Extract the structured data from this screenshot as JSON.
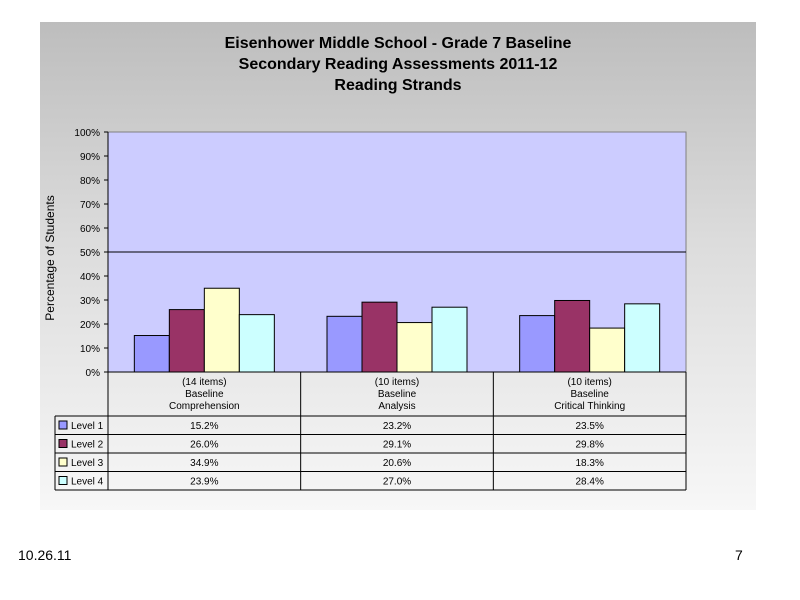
{
  "chart_data": {
    "type": "bar",
    "title_lines": [
      "Eisenhower Middle School - Grade 7 Baseline",
      "Secondary Reading Assessments 2011-12",
      "Reading Strands"
    ],
    "ylabel": "Percentage of Students",
    "ylim": [
      0,
      100
    ],
    "yticks": [
      "0%",
      "10%",
      "20%",
      "30%",
      "40%",
      "50%",
      "60%",
      "70%",
      "80%",
      "90%",
      "100%"
    ],
    "reference_line": 50,
    "categories": [
      {
        "line1": "(14 items)",
        "line2": "Baseline",
        "line3": "Comprehension"
      },
      {
        "line1": "(10 items)",
        "line2": "Baseline",
        "line3": "Analysis"
      },
      {
        "line1": "(10 items)",
        "line2": "Baseline",
        "line3": "Critical Thinking"
      }
    ],
    "series": [
      {
        "name": "Level 1",
        "color": "#9999ff",
        "values": [
          15.2,
          23.2,
          23.5
        ],
        "labels": [
          "15.2%",
          "23.2%",
          "23.5%"
        ]
      },
      {
        "name": "Level 2",
        "color": "#993366",
        "values": [
          26.0,
          29.1,
          29.8
        ],
        "labels": [
          "26.0%",
          "29.1%",
          "29.8%"
        ]
      },
      {
        "name": "Level 3",
        "color": "#ffffcc",
        "values": [
          34.9,
          20.6,
          18.3
        ],
        "labels": [
          "34.9%",
          "20.6%",
          "18.3%"
        ]
      },
      {
        "name": "Level 4",
        "color": "#ccffff",
        "values": [
          23.9,
          27.0,
          28.4
        ],
        "labels": [
          "23.9%",
          "27.0%",
          "28.4%"
        ]
      }
    ],
    "plot_background": "#ccccff",
    "grid": false,
    "legend": "data-table"
  },
  "footer": {
    "date": "10.26.11",
    "page_number": "7"
  }
}
